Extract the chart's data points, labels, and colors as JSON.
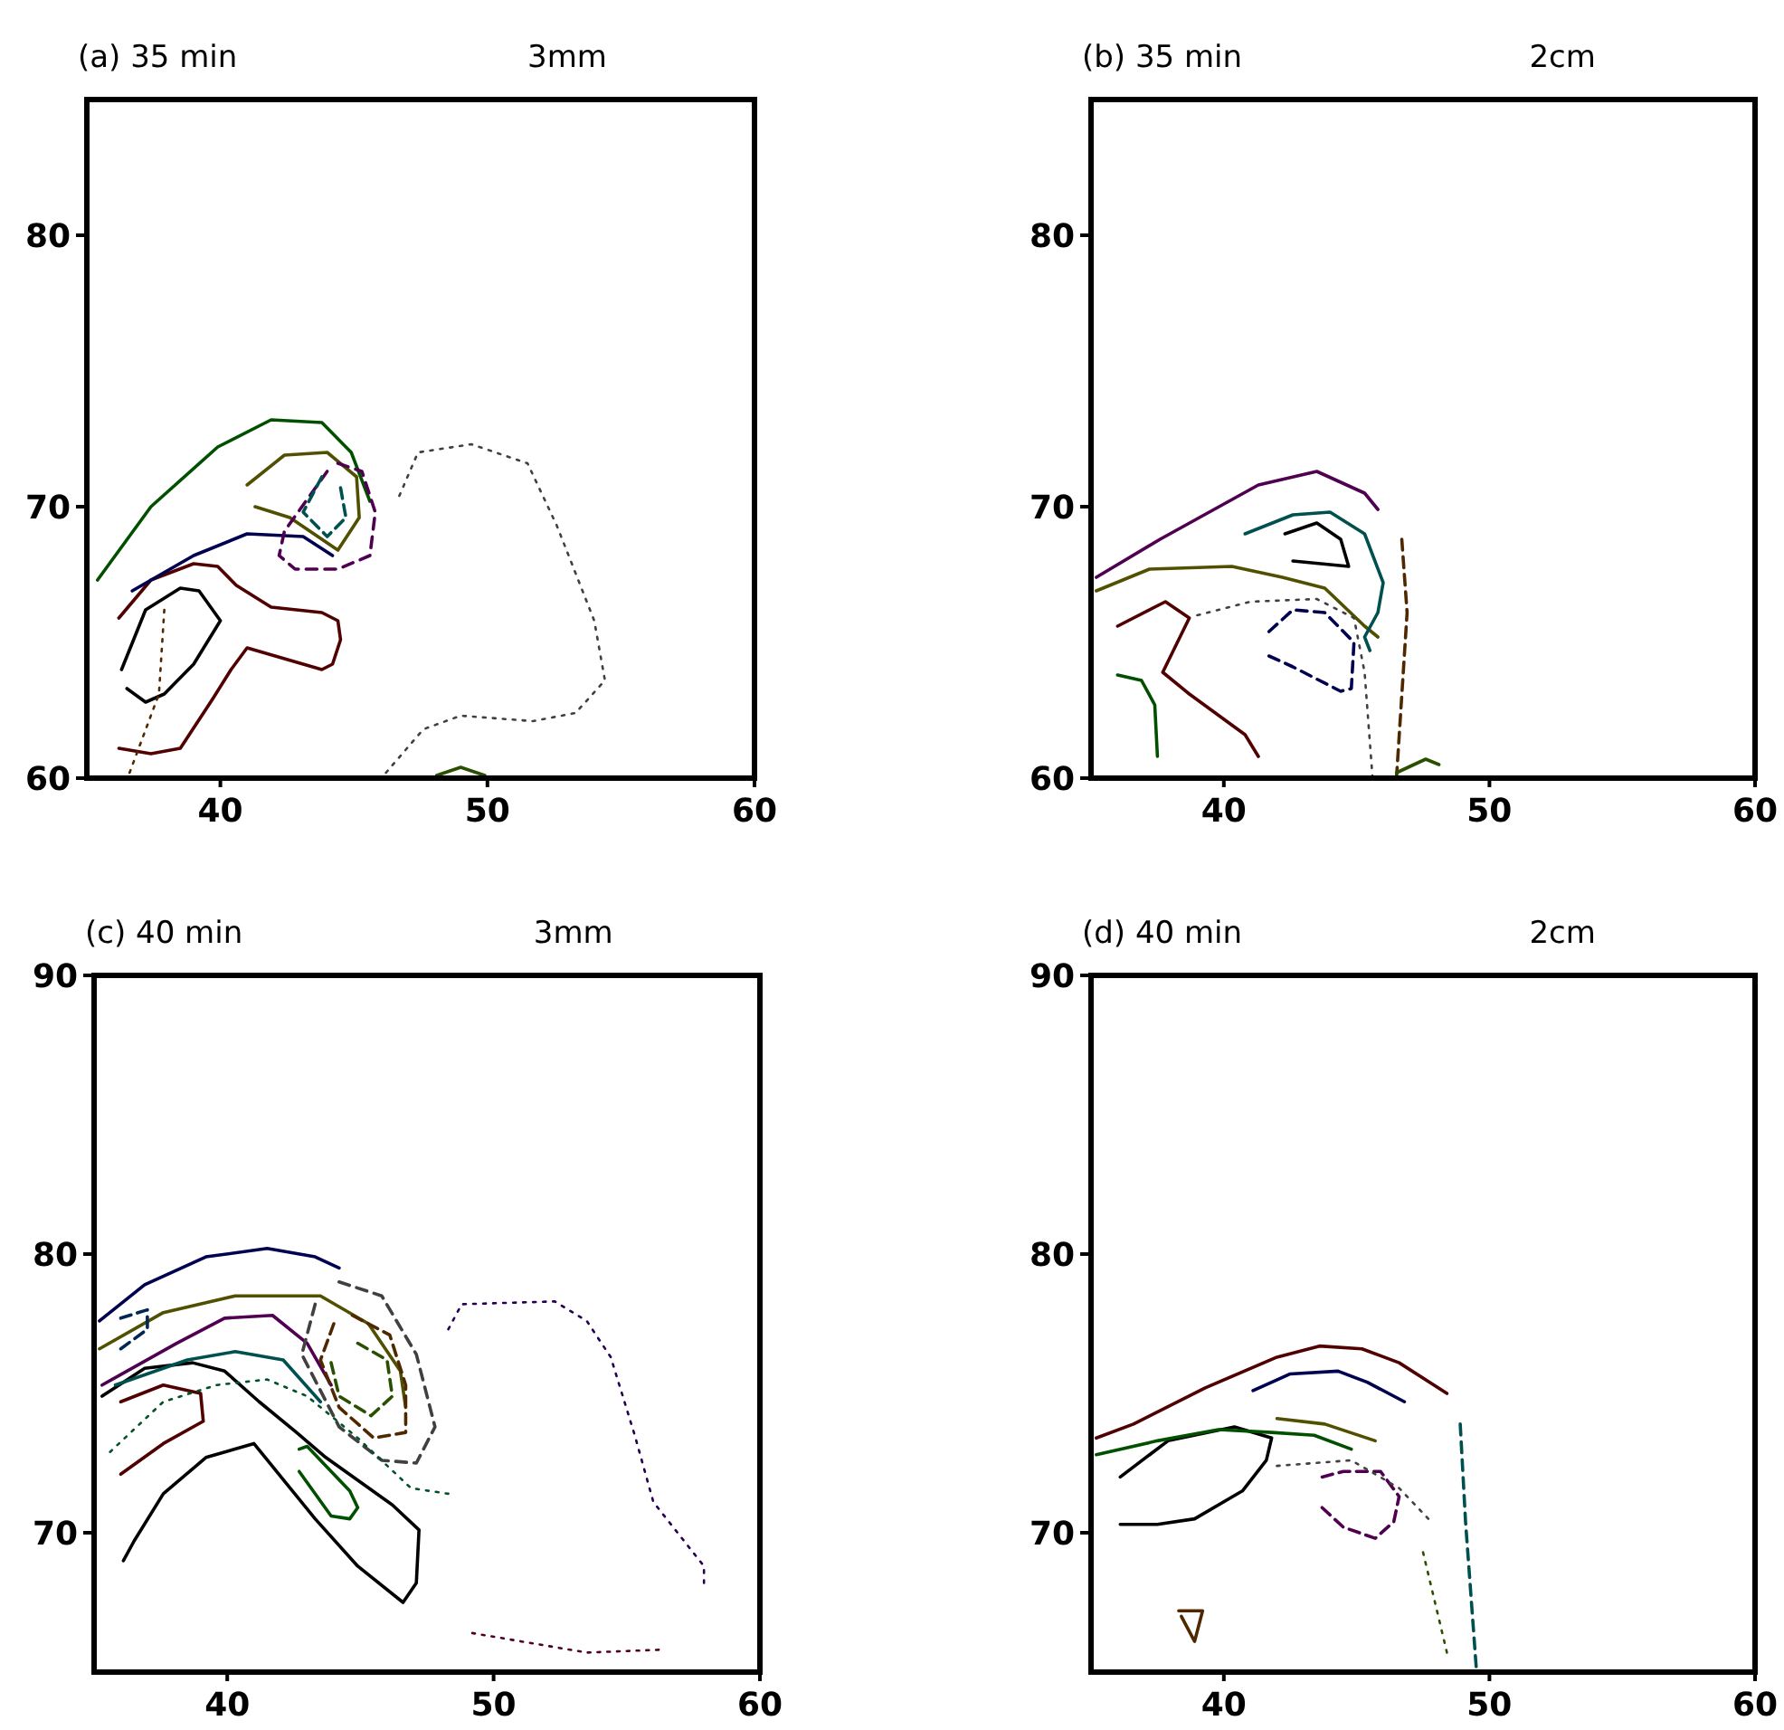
{
  "chart_data": [
    {
      "type": "line",
      "title": "(a) 35 min",
      "subtitle": "3mm",
      "xlim": [
        35,
        60
      ],
      "ylim": [
        60,
        85
      ],
      "xticks": [
        40,
        50,
        60
      ],
      "yticks": [
        60,
        70,
        80
      ],
      "series": [
        {
          "line_style": "solid",
          "color": "#000000",
          "x": [
            36.3,
            37.2,
            38.5,
            39.2,
            40.0,
            39.0,
            37.9,
            37.2,
            36.5
          ],
          "values": [
            64.0,
            66.2,
            67.0,
            66.9,
            65.8,
            64.2,
            63.1,
            62.8,
            63.3
          ]
        },
        {
          "line_style": "solid",
          "color": "#500000",
          "x": [
            36.2,
            37.4,
            39.0,
            39.9,
            40.6,
            41.9,
            43.8,
            44.4,
            44.5,
            44.2,
            43.8,
            41.0,
            40.4,
            39.7,
            38.5,
            37.4,
            36.2
          ],
          "values": [
            65.9,
            67.3,
            67.9,
            67.8,
            67.1,
            66.3,
            66.1,
            65.8,
            65.1,
            64.2,
            64.0,
            64.8,
            64.0,
            62.9,
            61.1,
            60.9,
            61.1
          ]
        },
        {
          "line_style": "solid",
          "color": "#005000",
          "x": [
            35.4,
            37.4,
            39.9,
            41.9,
            43.8,
            44.9,
            45.6
          ],
          "values": [
            67.3,
            70.0,
            72.2,
            73.2,
            73.1,
            72.0,
            70.2
          ]
        },
        {
          "line_style": "solid",
          "color": "#000050",
          "x": [
            36.7,
            39.0,
            41.0,
            43.1,
            44.2
          ],
          "values": [
            66.9,
            68.2,
            69.0,
            68.9,
            68.2
          ]
        },
        {
          "line_style": "solid",
          "color": "#505000",
          "x": [
            41.0,
            42.4,
            44.0,
            45.1,
            45.2,
            44.4,
            42.6,
            41.3
          ],
          "values": [
            70.8,
            71.9,
            72.0,
            71.1,
            69.6,
            68.4,
            69.6,
            70.0
          ]
        },
        {
          "line_style": "dashed",
          "color": "#500050",
          "x": [
            44.4,
            45.3,
            45.8,
            45.6,
            44.4,
            42.8,
            42.2,
            42.4,
            44.0
          ],
          "values": [
            71.6,
            71.3,
            69.8,
            68.2,
            67.7,
            67.7,
            68.2,
            69.1,
            71.3
          ]
        },
        {
          "line_style": "dashed",
          "color": "#005050",
          "x": [
            43.8,
            43.1,
            44.0,
            44.7,
            44.5
          ],
          "values": [
            71.1,
            69.8,
            68.9,
            69.6,
            70.7
          ]
        },
        {
          "line_style": "dotted",
          "color": "#404040",
          "x": [
            46.7,
            47.4,
            49.4,
            51.5,
            52.6,
            54.0,
            54.4,
            53.3,
            51.7,
            49.0,
            47.6,
            46.2
          ],
          "values": [
            70.4,
            72.0,
            72.3,
            71.6,
            69.3,
            65.8,
            63.6,
            62.4,
            62.1,
            62.3,
            61.8,
            60.2
          ]
        },
        {
          "line_style": "dotted",
          "color": "#502800",
          "x": [
            37.9,
            37.7,
            36.6
          ],
          "values": [
            66.2,
            63.1,
            60.2
          ]
        },
        {
          "line_style": "solid",
          "color": "#285000",
          "x": [
            48.1,
            49.0,
            49.9
          ],
          "values": [
            60.1,
            60.4,
            60.1
          ]
        }
      ]
    },
    {
      "type": "line",
      "title": "(b) 35 min",
      "subtitle": "2cm",
      "xlim": [
        35,
        60
      ],
      "ylim": [
        60,
        85
      ],
      "xticks": [
        40,
        50,
        60
      ],
      "yticks": [
        60,
        70,
        80
      ],
      "series": [
        {
          "line_style": "solid",
          "color": "#000000",
          "x": [
            42.3,
            43.5,
            44.4,
            44.7,
            42.6
          ],
          "values": [
            69.0,
            69.4,
            68.8,
            67.8,
            68.0
          ]
        },
        {
          "line_style": "solid",
          "color": "#500000",
          "x": [
            36.0,
            37.8,
            38.7,
            37.7,
            38.7,
            40.8,
            41.3
          ],
          "values": [
            65.6,
            66.5,
            65.9,
            63.9,
            63.1,
            61.6,
            60.8
          ]
        },
        {
          "line_style": "solid",
          "color": "#005000",
          "x": [
            36.0,
            36.9,
            37.4,
            37.5
          ],
          "values": [
            63.8,
            63.6,
            62.7,
            60.8
          ]
        },
        {
          "line_style": "dashed",
          "color": "#000050",
          "x": [
            41.7,
            42.6,
            43.8,
            44.9,
            44.8,
            44.4,
            42.6,
            41.7
          ],
          "values": [
            65.4,
            66.2,
            66.1,
            65.0,
            63.3,
            63.2,
            64.1,
            64.5
          ]
        },
        {
          "line_style": "solid",
          "color": "#505000",
          "x": [
            35.2,
            37.2,
            40.3,
            42.2,
            43.8,
            45.3,
            45.8
          ],
          "values": [
            66.9,
            67.7,
            67.8,
            67.4,
            67.0,
            65.6,
            65.2
          ]
        },
        {
          "line_style": "solid",
          "color": "#500050",
          "x": [
            35.2,
            37.6,
            41.3,
            43.5,
            45.3,
            45.8
          ],
          "values": [
            67.4,
            68.8,
            70.8,
            71.3,
            70.5,
            69.9
          ]
        },
        {
          "line_style": "solid",
          "color": "#005050",
          "x": [
            40.8,
            42.6,
            44.0,
            45.3,
            46.0,
            45.8,
            45.3,
            45.5
          ],
          "values": [
            69.0,
            69.7,
            69.8,
            69.0,
            67.2,
            66.1,
            65.2,
            64.7
          ]
        },
        {
          "line_style": "dotted",
          "color": "#404040",
          "x": [
            39.0,
            41.0,
            43.5,
            44.9,
            45.3,
            45.6
          ],
          "values": [
            66.0,
            66.5,
            66.6,
            65.9,
            63.9,
            60.0
          ]
        },
        {
          "line_style": "dashed",
          "color": "#502800",
          "x": [
            46.7,
            46.9,
            46.5
          ],
          "values": [
            68.8,
            66.1,
            60.0
          ]
        },
        {
          "line_style": "solid",
          "color": "#285000",
          "x": [
            46.5,
            47.6,
            48.1
          ],
          "values": [
            60.2,
            60.7,
            60.5
          ]
        }
      ]
    },
    {
      "type": "line",
      "title": "(c) 40 min",
      "subtitle": "3mm",
      "xlim": [
        35,
        60
      ],
      "ylim": [
        65,
        90
      ],
      "xticks": [
        40,
        50,
        60
      ],
      "yticks": [
        70,
        80,
        90
      ],
      "series": [
        {
          "line_style": "solid",
          "color": "#000000",
          "x": [
            35.3,
            36.9,
            38.7,
            39.9,
            41.2,
            42.6,
            43.7,
            46.2,
            47.2,
            47.1,
            46.6,
            44.9,
            43.3,
            41.0,
            39.2,
            37.6,
            36.5,
            36.1
          ],
          "values": [
            74.9,
            75.9,
            76.1,
            75.8,
            74.7,
            73.6,
            72.7,
            71.0,
            70.1,
            68.2,
            67.5,
            68.8,
            70.5,
            73.2,
            72.7,
            71.4,
            69.7,
            69.0
          ]
        },
        {
          "line_style": "solid",
          "color": "#500000",
          "x": [
            36.0,
            37.6,
            39.0,
            39.1,
            37.6,
            36.0
          ],
          "values": [
            74.7,
            75.3,
            75.0,
            74.0,
            73.2,
            72.1
          ]
        },
        {
          "line_style": "solid",
          "color": "#005000",
          "x": [
            42.7,
            43.0,
            44.6,
            44.9,
            44.6,
            43.9,
            42.7
          ],
          "values": [
            73.0,
            73.1,
            71.5,
            70.9,
            70.5,
            70.6,
            72.2
          ]
        },
        {
          "line_style": "solid",
          "color": "#000050",
          "x": [
            35.2,
            36.9,
            39.2,
            41.5,
            43.3,
            44.2
          ],
          "values": [
            77.6,
            78.9,
            79.9,
            80.2,
            79.9,
            79.5
          ]
        },
        {
          "line_style": "solid",
          "color": "#505000",
          "x": [
            35.2,
            37.6,
            40.3,
            43.5,
            45.3,
            46.5,
            46.7
          ],
          "values": [
            76.6,
            77.9,
            78.5,
            78.5,
            77.5,
            75.8,
            74.5
          ]
        },
        {
          "line_style": "solid",
          "color": "#500050",
          "x": [
            35.3,
            38.1,
            39.9,
            41.7,
            43.0,
            43.9
          ],
          "values": [
            75.3,
            76.8,
            77.7,
            77.8,
            76.8,
            75.3
          ]
        },
        {
          "line_style": "solid",
          "color": "#005050",
          "x": [
            35.8,
            38.5,
            40.3,
            42.1,
            43.5
          ],
          "values": [
            75.3,
            76.2,
            76.5,
            76.2,
            74.7
          ]
        },
        {
          "line_style": "dashed",
          "color": "#404040",
          "x": [
            44.2,
            45.8,
            47.1,
            47.8,
            47.1,
            45.8,
            44.2,
            42.8,
            43.3
          ],
          "values": [
            79.0,
            78.5,
            76.4,
            73.8,
            72.5,
            72.6,
            73.8,
            76.4,
            78.2
          ]
        },
        {
          "line_style": "dashed",
          "color": "#502800",
          "x": [
            44.7,
            46.1,
            46.7,
            46.7,
            45.5,
            44.2,
            43.5,
            44.0
          ],
          "values": [
            77.8,
            77.1,
            75.3,
            73.6,
            73.4,
            74.5,
            76.2,
            77.5
          ]
        },
        {
          "line_style": "dashed",
          "color": "#285000",
          "x": [
            44.9,
            46.0,
            46.2,
            45.4,
            44.2,
            43.9
          ],
          "values": [
            76.8,
            76.2,
            74.9,
            74.2,
            74.9,
            76.1
          ]
        },
        {
          "line_style": "dashed",
          "color": "#002850",
          "x": [
            36.0,
            37.0,
            37.0,
            36.0
          ],
          "values": [
            77.7,
            78.0,
            77.3,
            76.6
          ]
        },
        {
          "line_style": "dotted",
          "color": "#280050",
          "x": [
            48.3,
            48.8,
            52.3,
            53.5,
            54.4,
            55.3,
            56.0,
            57.9,
            57.9
          ],
          "values": [
            77.3,
            78.2,
            78.3,
            77.6,
            76.3,
            73.5,
            71.1,
            68.8,
            68.2
          ]
        },
        {
          "line_style": "dotted",
          "color": "#500028",
          "x": [
            49.2,
            53.5,
            56.2
          ],
          "values": [
            66.4,
            65.7,
            65.8
          ]
        },
        {
          "line_style": "dotted",
          "color": "#005028",
          "x": [
            35.6,
            37.6,
            39.6,
            41.5,
            43.0,
            44.9,
            46.9,
            48.3
          ],
          "values": [
            72.9,
            74.7,
            75.3,
            75.5,
            74.9,
            73.4,
            71.6,
            71.4
          ]
        }
      ]
    },
    {
      "type": "line",
      "title": "(d) 40 min",
      "subtitle": "2cm",
      "xlim": [
        35,
        60
      ],
      "ylim": [
        65,
        90
      ],
      "xticks": [
        40,
        50,
        60
      ],
      "yticks": [
        70,
        80,
        90
      ],
      "series": [
        {
          "line_style": "solid",
          "color": "#000000",
          "x": [
            36.1,
            37.9,
            40.4,
            41.8,
            41.6,
            40.7,
            38.9,
            37.5,
            36.1
          ],
          "values": [
            72.0,
            73.3,
            73.8,
            73.4,
            72.6,
            71.5,
            70.5,
            70.3,
            70.3
          ]
        },
        {
          "line_style": "solid",
          "color": "#500000",
          "x": [
            35.2,
            36.6,
            39.3,
            42.0,
            43.6,
            45.2,
            46.6,
            48.4
          ],
          "values": [
            73.4,
            73.9,
            75.2,
            76.3,
            76.7,
            76.6,
            76.1,
            75.0
          ]
        },
        {
          "line_style": "solid",
          "color": "#005000",
          "x": [
            35.2,
            37.5,
            39.8,
            41.8,
            43.4,
            44.8
          ],
          "values": [
            72.8,
            73.3,
            73.7,
            73.6,
            73.5,
            73.0
          ]
        },
        {
          "line_style": "solid",
          "color": "#000050",
          "x": [
            41.1,
            42.5,
            44.3,
            45.4,
            46.8
          ],
          "values": [
            75.1,
            75.7,
            75.8,
            75.4,
            74.7
          ]
        },
        {
          "line_style": "solid",
          "color": "#505000",
          "x": [
            42.0,
            43.8,
            45.7
          ],
          "values": [
            74.1,
            73.9,
            73.3
          ]
        },
        {
          "line_style": "dashed",
          "color": "#500050",
          "x": [
            43.7,
            44.5,
            45.9,
            46.6,
            46.4,
            45.7,
            44.5,
            43.7
          ],
          "values": [
            72.0,
            72.2,
            72.2,
            71.3,
            70.4,
            69.8,
            70.2,
            70.9
          ]
        },
        {
          "line_style": "dashed",
          "color": "#005050",
          "x": [
            48.9,
            49.1,
            49.5
          ],
          "values": [
            73.9,
            70.4,
            65.2
          ]
        },
        {
          "line_style": "dotted",
          "color": "#404040",
          "x": [
            42.0,
            44.8,
            46.6,
            47.7
          ],
          "values": [
            72.4,
            72.6,
            71.6,
            70.5
          ]
        },
        {
          "line_style": "solid",
          "color": "#502800",
          "x": [
            38.3,
            39.2,
            38.9,
            38.4
          ],
          "values": [
            67.2,
            67.2,
            66.1,
            67.0
          ]
        },
        {
          "line_style": "dotted",
          "color": "#285000",
          "x": [
            47.5,
            48.4
          ],
          "values": [
            69.3,
            65.7
          ]
        }
      ]
    }
  ]
}
